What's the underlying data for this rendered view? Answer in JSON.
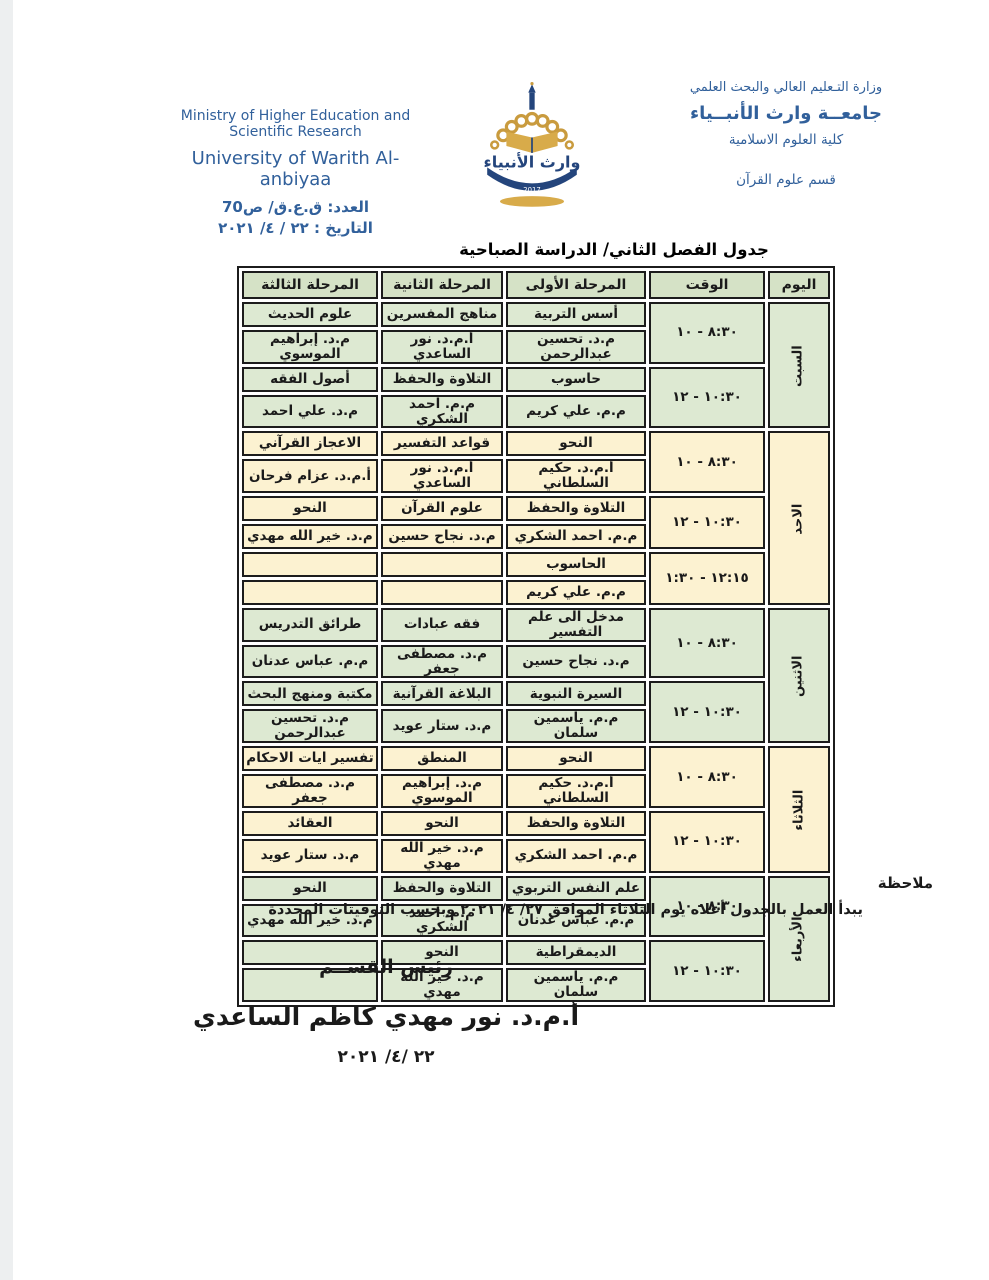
{
  "header": {
    "right_block": {
      "line1": "وزارة التـعليم العالي والبحث العلمي",
      "line2": "جامعــة وارث الأنبــياء",
      "line3": "كلية العلوم الاسلامية",
      "line4": "قسم علوم القرآن"
    },
    "left_block": {
      "en_line1": "Ministry of Higher Education and",
      "en_line2": "Scientific Research",
      "en_line3": "University of Warith Al- anbiyaa",
      "number_line": "العدد: ق.ع.ق/ ص70",
      "date_line": "التاريخ : ٢٢ / ٤/ ٢٠٢١"
    },
    "logo": {
      "alt": "شعار جامعة وارث الأنبياء",
      "year": "2017"
    }
  },
  "title": "جدول الفصل الثاني/ الدراسة الصباحية",
  "table": {
    "columns": [
      "اليوم",
      "الوقت",
      "المرحلة الأولى",
      "المرحلة الثانية",
      "المرحلة الثالثة"
    ],
    "days": [
      {
        "name": "السبت",
        "color": "green",
        "slots": [
          {
            "time": "٨:٣٠ - ١٠",
            "stage1": {
              "course": "أسس التربية",
              "teacher": "م.د. تحسين عبدالرحمن"
            },
            "stage2": {
              "course": "مناهج المفسرين",
              "teacher": "أ.م.د. نور الساعدي"
            },
            "stage3": {
              "course": "علوم الحديث",
              "teacher": "م.د. إبراهيم الموسوي"
            }
          },
          {
            "time": "١٠:٣٠ - ١٢",
            "stage1": {
              "course": "حاسوب",
              "teacher": "م.م. علي كريم"
            },
            "stage2": {
              "course": "التلاوة والحفظ",
              "teacher": "م.م. احمد الشكري"
            },
            "stage3": {
              "course": "أصول الفقه",
              "teacher": "م.د. علي احمد"
            }
          }
        ]
      },
      {
        "name": "الاحد",
        "color": "cream",
        "slots": [
          {
            "time": "٨:٣٠ - ١٠",
            "stage1": {
              "course": "النحو",
              "teacher": "أ.م.د. حكيم السلطاني"
            },
            "stage2": {
              "course": "قواعد التفسير",
              "teacher": "أ.م.د. نور الساعدي"
            },
            "stage3": {
              "course": "الاعجاز القرآني",
              "teacher": "أ.م.د. عزام فرحان"
            }
          },
          {
            "time": "١٠:٣٠ - ١٢",
            "stage1": {
              "course": "التلاوة والحفظ",
              "teacher": "م.م. احمد الشكري"
            },
            "stage2": {
              "course": "علوم القرآن",
              "teacher": "م.د. نجاح حسين"
            },
            "stage3": {
              "course": "النحو",
              "teacher": "م.د. خير الله مهدي"
            }
          },
          {
            "time": "١٢:١٥ - ١:٣٠",
            "stage1": {
              "course": "الحاسوب",
              "teacher": "م.م. علي كريم"
            },
            "stage2": {
              "course": "",
              "teacher": ""
            },
            "stage3": {
              "course": "",
              "teacher": ""
            }
          }
        ]
      },
      {
        "name": "الاثنين",
        "color": "green",
        "slots": [
          {
            "time": "٨:٣٠ - ١٠",
            "stage1": {
              "course": "مدخل الى علم التفسير",
              "teacher": "م.د. نجاح حسين"
            },
            "stage2": {
              "course": "فقه عبادات",
              "teacher": "م.د. مصطفى جعفر"
            },
            "stage3": {
              "course": "طرائق التدريس",
              "teacher": "م.م. عباس عدنان"
            }
          },
          {
            "time": "١٠:٣٠ - ١٢",
            "stage1": {
              "course": "السيرة النبوية",
              "teacher": "م.م. ياسمين سلمان"
            },
            "stage2": {
              "course": "البلاغة القرآنية",
              "teacher": "م.د. ستار عويد"
            },
            "stage3": {
              "course": "مكتبة ومنهج البحث",
              "teacher": "م.د. تحسين عبدالرحمن"
            }
          }
        ]
      },
      {
        "name": "الثلاثاء",
        "color": "cream",
        "slots": [
          {
            "time": "٨:٣٠ - ١٠",
            "stage1": {
              "course": "النحو",
              "teacher": "أ.م.د. حكيم السلطاني"
            },
            "stage2": {
              "course": "المنطق",
              "teacher": "م.د. إبراهيم الموسوي"
            },
            "stage3": {
              "course": "تفسير ايات الاحكام",
              "teacher": "م.د. مصطفى جعفر"
            }
          },
          {
            "time": "١٠:٣٠ - ١٢",
            "stage1": {
              "course": "التلاوة والحفظ",
              "teacher": "م.م. احمد الشكري"
            },
            "stage2": {
              "course": "النحو",
              "teacher": "م.د. خير الله مهدي"
            },
            "stage3": {
              "course": "العقائد",
              "teacher": "م.د. ستار عويد"
            }
          }
        ]
      },
      {
        "name": "الأربعاء",
        "color": "green",
        "slots": [
          {
            "time": "٨:٣٠ - ١٠",
            "stage1": {
              "course": "علم النفس التربوي",
              "teacher": "م.م. عباس عدنان"
            },
            "stage2": {
              "course": "التلاوة والحفظ",
              "teacher": "م.م. احمد الشكري"
            },
            "stage3": {
              "course": "النحو",
              "teacher": "م.د. خير الله مهدي"
            }
          },
          {
            "time": "١٠:٣٠ - ١٢",
            "stage1": {
              "course": "الديمقراطية",
              "teacher": "م.م. ياسمين سلمان"
            },
            "stage2": {
              "course": "النحو",
              "teacher": "م.د. خير الله مهدي"
            },
            "stage3": {
              "course": "",
              "teacher": ""
            }
          }
        ]
      }
    ]
  },
  "note": {
    "label": "ملاحظة",
    "text": "يبدأ العمل بالجدول أعلاه يوم الثلاثاء الموافق ٢٧/ ٤/ ٢٠٢١ وبحسب التوقيتات المحددة"
  },
  "signature": {
    "title": "رئيس القســم",
    "name": "أ.م.د. نور مهدي كاظم الساعدي",
    "date": "٢٢ /٤/ ٢٠٢١"
  },
  "colors": {
    "day_green": "#dde9d2",
    "day_cream": "#fcf2d1",
    "header_green": "#d5e2c6",
    "border": "#1c1c1c",
    "blue": "#31609b"
  }
}
